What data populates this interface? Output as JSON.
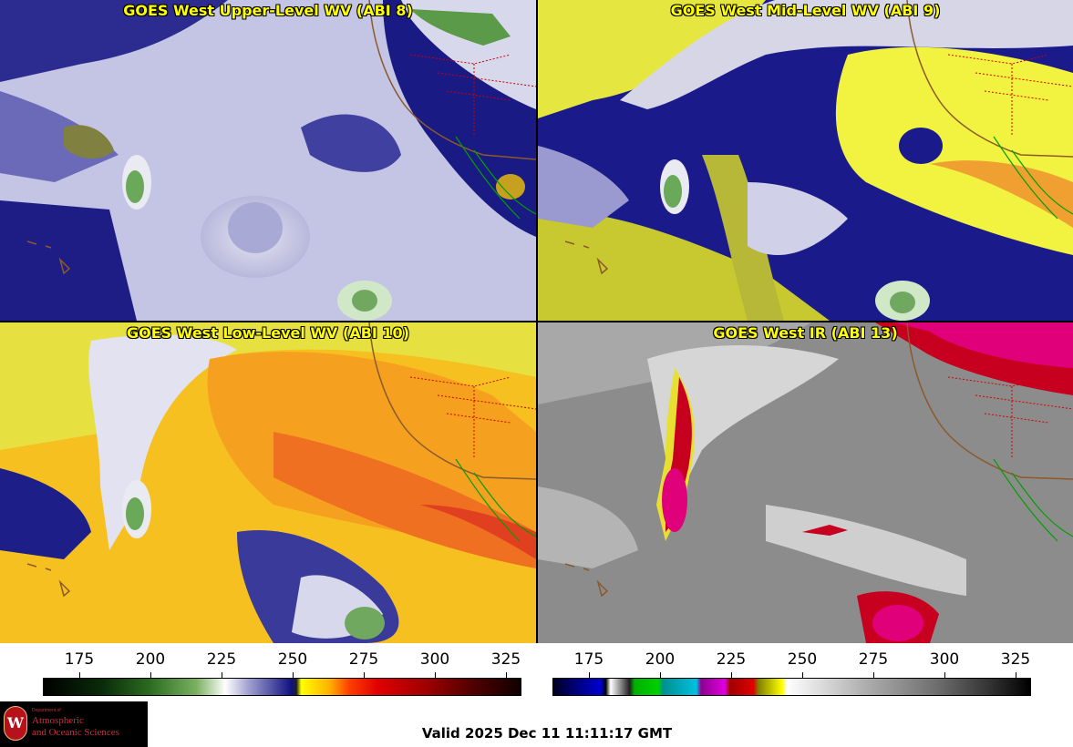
{
  "panels": [
    {
      "id": "abi8",
      "title": "GOES West Upper-Level WV (ABI 8)"
    },
    {
      "id": "abi9",
      "title": "GOES West Mid-Level WV (ABI 9)"
    },
    {
      "id": "abi10",
      "title": "GOES West Low-Level WV (ABI 10)"
    },
    {
      "id": "abi13",
      "title": "GOES West IR (ABI 13)"
    }
  ],
  "colorbars": [
    {
      "id": "wv",
      "ticks": [
        "175",
        "200",
        "225",
        "250",
        "275",
        "300",
        "325"
      ]
    },
    {
      "id": "ir",
      "ticks": [
        "175",
        "200",
        "225",
        "250",
        "275",
        "300",
        "325"
      ]
    }
  ],
  "logo": {
    "dept_line": "Department of",
    "line1": "Atmospheric",
    "line2": "and Oceanic Sciences",
    "seal_letter": "W"
  },
  "valid_time": "Valid 2025 Dec 11 11:11:17 GMT",
  "colors": {
    "wv_dark": "#000080",
    "wv_light": "#e8e8f0",
    "wv_yellow": "#ffff00",
    "wv_orange": "#ff8c00",
    "ir_gray": "#8a8a8a",
    "ir_magenta": "#e0007a",
    "coast": "#8b5a2b",
    "state_border": "#d00000",
    "mexico_border": "#00a000",
    "title": "#ffff00"
  }
}
